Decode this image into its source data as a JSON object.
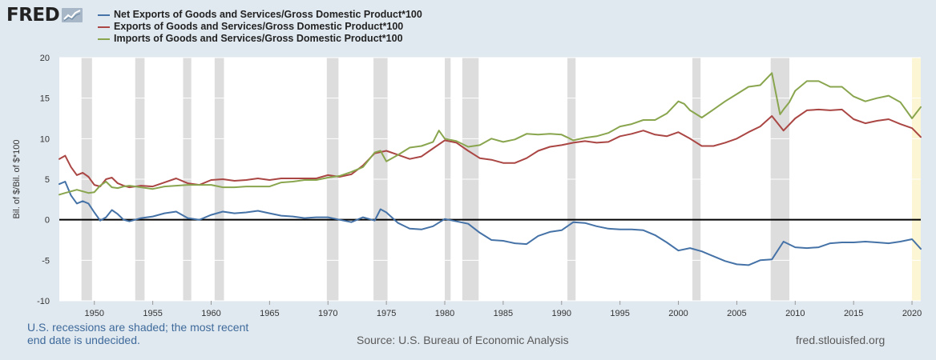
{
  "brand": {
    "logo_text": "FRED",
    "icon": "chart-line-icon"
  },
  "notes": {
    "recession_line1": "U.S. recessions are shaded; the most recent",
    "recession_line2": "end date is undecided.",
    "source": "Source: U.S. Bureau of Economic Analysis",
    "url": "fred.stlouisfed.org"
  },
  "colors": {
    "net": "#4572a7",
    "exports": "#aa4643",
    "imports": "#89a54e",
    "recession": "#dddddd",
    "recession_current": "#fdf6d4",
    "zero_line": "#000000",
    "grid": "#ffffff",
    "plot_bg": "#ffffff"
  },
  "chart_data": {
    "type": "line",
    "title": "",
    "xlabel": "",
    "ylabel": "Bil. of $/Bil. of $*100",
    "xlim": [
      1947,
      2020.75
    ],
    "ylim": [
      -10,
      20
    ],
    "yticks": [
      -10,
      -5,
      0,
      5,
      10,
      15,
      20
    ],
    "xticks": [
      1950,
      1955,
      1960,
      1965,
      1970,
      1975,
      1980,
      1985,
      1990,
      1995,
      2000,
      2005,
      2010,
      2015,
      2020
    ],
    "reference_line_y": 0,
    "recessions": [
      [
        1948.9,
        1949.8
      ],
      [
        1953.5,
        1954.3
      ],
      [
        1957.6,
        1958.3
      ],
      [
        1960.3,
        1961.1
      ],
      [
        1969.9,
        1970.9
      ],
      [
        1973.9,
        1975.1
      ],
      [
        1980.0,
        1980.5
      ],
      [
        1981.5,
        1982.9
      ],
      [
        1990.5,
        1991.2
      ],
      [
        2001.2,
        2001.9
      ],
      [
        2007.9,
        2009.5
      ]
    ],
    "recession_current": [
      2020.0,
      2020.75
    ],
    "series": [
      {
        "name": "Net Exports of Goods and Services/Gross Domestic Product*100",
        "key": "net",
        "x": [
          1947,
          1947.5,
          1948,
          1948.5,
          1949,
          1949.5,
          1950,
          1950.5,
          1951,
          1951.5,
          1952,
          1952.5,
          1953,
          1954,
          1955,
          1956,
          1957,
          1958,
          1959,
          1960,
          1961,
          1962,
          1963,
          1964,
          1965,
          1966,
          1967,
          1968,
          1969,
          1970,
          1971,
          1972,
          1973,
          1974,
          1974.5,
          1975,
          1976,
          1977,
          1978,
          1979,
          1980,
          1981,
          1982,
          1983,
          1984,
          1985,
          1986,
          1987,
          1988,
          1989,
          1990,
          1991,
          1992,
          1993,
          1994,
          1995,
          1996,
          1997,
          1998,
          1999,
          2000,
          2001,
          2002,
          2003,
          2004,
          2005,
          2006,
          2007,
          2008,
          2009,
          2010,
          2011,
          2012,
          2013,
          2014,
          2015,
          2016,
          2017,
          2018,
          2019,
          2020,
          2020.75
        ],
        "values": [
          4.4,
          4.7,
          3.0,
          2.0,
          2.3,
          2.0,
          0.9,
          -0.1,
          0.3,
          1.2,
          0.7,
          0.0,
          -0.2,
          0.2,
          0.4,
          0.8,
          1.0,
          0.2,
          0.0,
          0.6,
          1.0,
          0.8,
          0.9,
          1.1,
          0.8,
          0.5,
          0.4,
          0.2,
          0.3,
          0.3,
          0.0,
          -0.3,
          0.3,
          -0.1,
          1.3,
          0.9,
          -0.4,
          -1.1,
          -1.2,
          -0.8,
          0.1,
          -0.2,
          -0.5,
          -1.6,
          -2.5,
          -2.6,
          -2.9,
          -3.0,
          -2.0,
          -1.5,
          -1.3,
          -0.3,
          -0.4,
          -0.8,
          -1.1,
          -1.2,
          -1.2,
          -1.3,
          -1.9,
          -2.8,
          -3.8,
          -3.5,
          -3.9,
          -4.5,
          -5.1,
          -5.5,
          -5.6,
          -5.0,
          -4.9,
          -2.7,
          -3.4,
          -3.5,
          -3.4,
          -2.9,
          -2.8,
          -2.8,
          -2.7,
          -2.8,
          -2.9,
          -2.7,
          -2.4,
          -3.6
        ]
      },
      {
        "name": "Exports of Goods and Services/Gross Domestic Product*100",
        "key": "exports",
        "x": [
          1947,
          1947.5,
          1948,
          1948.5,
          1949,
          1949.5,
          1950,
          1950.5,
          1951,
          1951.5,
          1952,
          1952.5,
          1953,
          1954,
          1955,
          1956,
          1957,
          1958,
          1959,
          1960,
          1961,
          1962,
          1963,
          1964,
          1965,
          1966,
          1967,
          1968,
          1969,
          1970,
          1971,
          1972,
          1973,
          1974,
          1975,
          1976,
          1977,
          1978,
          1979,
          1980,
          1981,
          1982,
          1983,
          1984,
          1985,
          1986,
          1987,
          1988,
          1989,
          1990,
          1991,
          1992,
          1993,
          1994,
          1995,
          1996,
          1997,
          1998,
          1999,
          2000,
          2001,
          2002,
          2003,
          2004,
          2005,
          2006,
          2007,
          2008,
          2009,
          2010,
          2011,
          2012,
          2013,
          2014,
          2015,
          2016,
          2017,
          2018,
          2019,
          2020,
          2020.75
        ],
        "values": [
          7.5,
          7.9,
          6.5,
          5.5,
          5.8,
          5.3,
          4.3,
          4.1,
          5.0,
          5.2,
          4.5,
          4.2,
          4.0,
          4.2,
          4.1,
          4.6,
          5.1,
          4.5,
          4.3,
          4.9,
          5.0,
          4.8,
          4.9,
          5.1,
          4.9,
          5.1,
          5.1,
          5.1,
          5.1,
          5.5,
          5.3,
          5.6,
          6.7,
          8.2,
          8.5,
          8.0,
          7.5,
          7.8,
          8.8,
          9.8,
          9.5,
          8.5,
          7.6,
          7.4,
          7.0,
          7.0,
          7.6,
          8.5,
          9.0,
          9.2,
          9.5,
          9.7,
          9.5,
          9.6,
          10.3,
          10.6,
          11.0,
          10.5,
          10.3,
          10.8,
          10.0,
          9.1,
          9.1,
          9.5,
          10.0,
          10.8,
          11.5,
          12.8,
          11.0,
          12.5,
          13.5,
          13.6,
          13.5,
          13.6,
          12.4,
          11.9,
          12.2,
          12.4,
          11.8,
          11.3,
          10.2
        ]
      },
      {
        "name": "Imports of Goods and Services/Gross Domestic Product*100",
        "key": "imports",
        "x": [
          1947,
          1947.5,
          1948,
          1948.5,
          1949,
          1949.5,
          1950,
          1950.5,
          1951,
          1951.5,
          1952,
          1952.5,
          1953,
          1954,
          1955,
          1956,
          1957,
          1958,
          1959,
          1960,
          1961,
          1962,
          1963,
          1964,
          1965,
          1966,
          1967,
          1968,
          1969,
          1970,
          1971,
          1972,
          1973,
          1974,
          1974.5,
          1975,
          1976,
          1977,
          1978,
          1979,
          1979.5,
          1980,
          1981,
          1982,
          1983,
          1984,
          1985,
          1986,
          1987,
          1988,
          1989,
          1990,
          1991,
          1992,
          1993,
          1994,
          1995,
          1996,
          1997,
          1998,
          1999,
          2000,
          2000.5,
          2001,
          2002,
          2003,
          2004,
          2005,
          2006,
          2007,
          2008,
          2008.7,
          2009,
          2009.5,
          2010,
          2011,
          2012,
          2013,
          2014,
          2015,
          2016,
          2017,
          2018,
          2019,
          2020,
          2020.75
        ],
        "values": [
          3.1,
          3.3,
          3.5,
          3.7,
          3.5,
          3.3,
          3.4,
          4.2,
          4.7,
          4.0,
          3.9,
          4.1,
          4.2,
          4.0,
          3.8,
          4.1,
          4.2,
          4.3,
          4.3,
          4.3,
          4.0,
          4.0,
          4.1,
          4.1,
          4.1,
          4.6,
          4.7,
          4.9,
          4.9,
          5.2,
          5.4,
          5.9,
          6.5,
          8.3,
          8.5,
          7.2,
          8.0,
          8.9,
          9.1,
          9.6,
          11.0,
          10.0,
          9.7,
          9.0,
          9.2,
          10.0,
          9.6,
          9.9,
          10.6,
          10.5,
          10.6,
          10.5,
          9.8,
          10.1,
          10.3,
          10.7,
          11.5,
          11.8,
          12.3,
          12.3,
          13.1,
          14.6,
          14.3,
          13.5,
          12.6,
          13.6,
          14.6,
          15.5,
          16.4,
          16.6,
          18.1,
          13.0,
          13.6,
          14.5,
          15.9,
          17.1,
          17.1,
          16.4,
          16.4,
          15.2,
          14.6,
          15.0,
          15.3,
          14.5,
          12.5,
          13.9
        ]
      }
    ]
  }
}
